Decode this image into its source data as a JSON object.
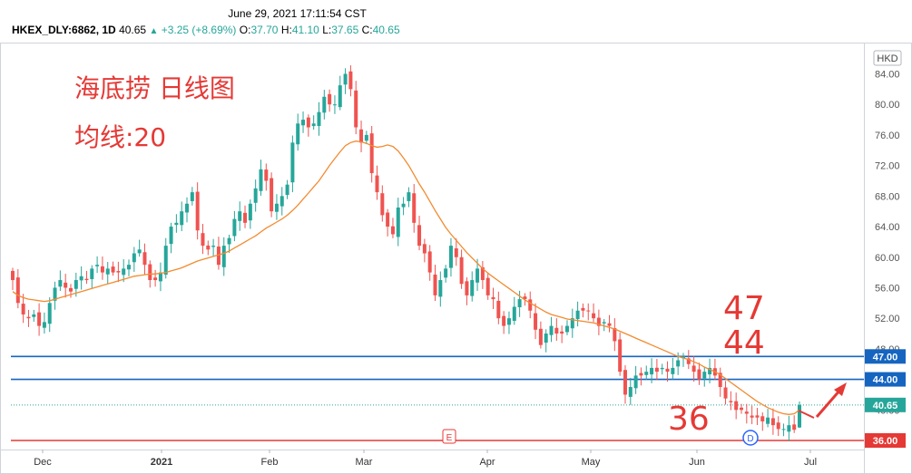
{
  "header": {
    "timestamp": "June 29, 2021 17:11:54 CST",
    "symbol": "HKEX_DLY:6862, 1D",
    "last": "40.65",
    "change": "+3.25 (+8.69%)",
    "open_label": "O:",
    "open": "37.70",
    "high_label": "H:",
    "high": "41.10",
    "low_label": "L:",
    "low": "37.65",
    "close_label": "C:",
    "close": "40.65"
  },
  "colors": {
    "up": "#26a69a",
    "down": "#ef5350",
    "ma": "#f28b30",
    "hline_blue": "#1565c0",
    "hline_red": "#e53935",
    "annotation": "#e53935"
  },
  "chart_data": {
    "type": "candlestick",
    "currency": "HKD",
    "y_ticks": [
      84.0,
      80.0,
      76.0,
      72.0,
      68.0,
      64.0,
      60.0,
      56.0,
      52.0,
      48.0,
      44.0,
      40.0,
      36.0
    ],
    "ylim": [
      34.0,
      86.0
    ],
    "x_labels": [
      "Dec",
      "2021",
      "Feb",
      "Mar",
      "Apr",
      "May",
      "Jun",
      "Jul"
    ],
    "price_labels": [
      {
        "value": 47.0,
        "text": "47.00",
        "color": "#1565c0"
      },
      {
        "value": 44.0,
        "text": "44.00",
        "color": "#1565c0"
      },
      {
        "value": 40.65,
        "text": "40.65",
        "color": "#26a69a"
      },
      {
        "value": 36.0,
        "text": "36.00",
        "color": "#e53935"
      }
    ],
    "horizontal_lines": [
      {
        "value": 47.0,
        "color": "#1565c0"
      },
      {
        "value": 44.0,
        "color": "#1565c0"
      },
      {
        "value": 36.0,
        "color": "#e53935"
      }
    ],
    "last_price": 40.65,
    "ma_label": "均线:20",
    "annotations": {
      "title": "海底捞 日线图",
      "ma": "均线:20",
      "level_47": "47",
      "level_44": "44",
      "level_36": "36"
    },
    "markers": [
      {
        "text": "E",
        "position": "2021-03-28",
        "kind": "earnings"
      },
      {
        "text": "D",
        "position": "2021-06-11",
        "kind": "dividend"
      }
    ],
    "closes": [
      57.0,
      54.0,
      52.5,
      52.0,
      52.5,
      51.0,
      51.5,
      54.0,
      56.0,
      57.0,
      56.0,
      55.5,
      57.0,
      57.5,
      57.0,
      58.5,
      59.0,
      58.0,
      58.5,
      58.0,
      58.0,
      58.5,
      59.0,
      60.5,
      61.0,
      59.0,
      57.0,
      57.0,
      58.0,
      61.5,
      64.0,
      64.5,
      66.0,
      67.0,
      68.5,
      63.5,
      61.5,
      61.0,
      61.5,
      59.0,
      61.5,
      62.5,
      65.0,
      66.0,
      64.5,
      67.0,
      69.0,
      71.5,
      70.0,
      66.0,
      67.0,
      68.0,
      69.5,
      75.0,
      77.5,
      78.0,
      77.0,
      77.5,
      79.0,
      81.0,
      80.0,
      80.0,
      82.5,
      84.0,
      82.0,
      77.0,
      75.0,
      76.0,
      71.0,
      68.5,
      65.5,
      64.0,
      63.0,
      66.5,
      67.0,
      68.5,
      64.5,
      61.5,
      60.5,
      58.0,
      55.0,
      57.0,
      58.5,
      61.5,
      60.0,
      56.5,
      55.0,
      57.0,
      58.5,
      57.0,
      55.0,
      54.5,
      52.0,
      51.0,
      52.0,
      53.5,
      54.5,
      54.5,
      53.0,
      50.5,
      48.5,
      50.0,
      51.0,
      50.0,
      50.0,
      51.0,
      52.0,
      53.0,
      53.0,
      53.0,
      52.0,
      51.0,
      51.5,
      51.0,
      49.0,
      45.0,
      42.0,
      43.0,
      44.5,
      44.5,
      45.0,
      45.5,
      45.0,
      45.5,
      45.0,
      45.5,
      46.5,
      47.0,
      46.0,
      45.0,
      44.0,
      45.0,
      45.5,
      44.5,
      43.0,
      41.5,
      41.0,
      40.0,
      40.0,
      39.5,
      39.0,
      39.0,
      38.5,
      39.0,
      38.0,
      37.5,
      37.5,
      38.0,
      37.4,
      40.65
    ],
    "ma20": [
      55.5,
      55.0,
      54.7,
      54.5,
      54.4,
      54.3,
      54.2,
      54.3,
      54.5,
      54.7,
      54.9,
      55.1,
      55.3,
      55.5,
      55.7,
      55.9,
      56.1,
      56.3,
      56.5,
      56.7,
      56.9,
      57.1,
      57.3,
      57.5,
      57.6,
      57.7,
      57.8,
      57.8,
      57.9,
      58.0,
      58.2,
      58.4,
      58.6,
      58.9,
      59.2,
      59.5,
      59.7,
      59.9,
      60.1,
      60.3,
      60.5,
      60.8,
      61.2,
      61.6,
      62.0,
      62.4,
      62.8,
      63.3,
      63.8,
      64.2,
      64.6,
      65.0,
      65.5,
      66.1,
      66.8,
      67.6,
      68.4,
      69.2,
      70.0,
      71.0,
      72.0,
      72.9,
      73.8,
      74.6,
      75.0,
      75.2,
      75.1,
      74.9,
      74.6,
      74.4,
      74.5,
      74.7,
      74.5,
      73.9,
      73.0,
      72.0,
      70.8,
      69.6,
      68.5,
      67.3,
      66.1,
      65.0,
      63.9,
      63.0,
      62.2,
      61.4,
      60.6,
      59.9,
      59.2,
      58.5,
      57.9,
      57.4,
      56.9,
      56.4,
      55.9,
      55.4,
      54.9,
      54.4,
      54.0,
      53.6,
      53.2,
      52.8,
      52.5,
      52.3,
      52.1,
      51.9,
      51.8,
      51.7,
      51.6,
      51.5,
      51.4,
      51.2,
      51.0,
      50.8,
      50.6,
      50.3,
      50.0,
      49.7,
      49.4,
      49.1,
      48.8,
      48.5,
      48.2,
      47.9,
      47.6,
      47.3,
      47.0,
      46.8,
      46.6,
      46.3,
      46.0,
      45.6,
      45.3,
      45.0,
      44.6,
      44.1,
      43.6,
      43.1,
      42.6,
      42.1,
      41.6,
      41.1,
      40.7,
      40.3,
      40.0,
      39.7,
      39.5,
      39.4,
      39.5,
      40.0
    ],
    "volatility": "estimated candle wicks ~1.5% of price"
  }
}
